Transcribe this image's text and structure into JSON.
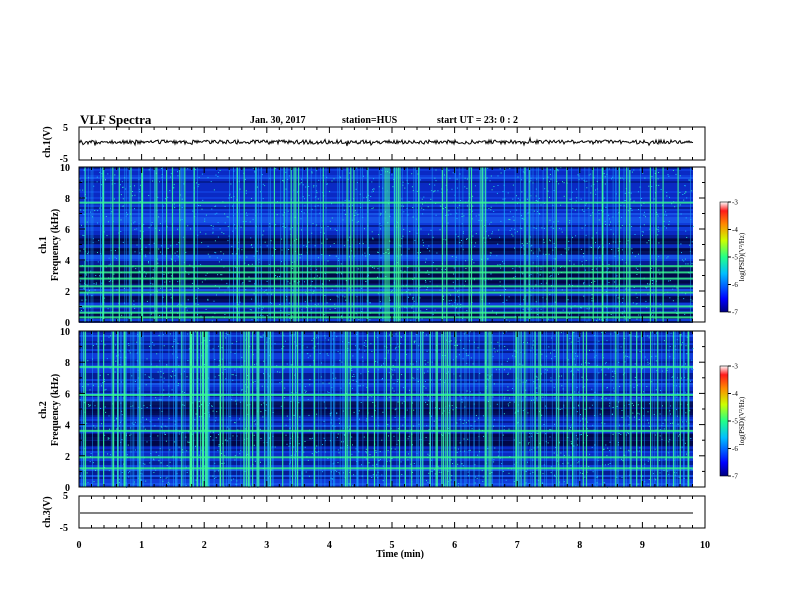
{
  "header": {
    "title": "VLF Spectra",
    "date": "Jan. 30, 2017",
    "station": "station=HUS",
    "start": "start UT = 23: 0 : 2"
  },
  "chart_data": [
    {
      "type": "line",
      "panel": "ch1-waveform",
      "ylabel": "ch.1(V)",
      "ylim": [
        -5,
        5
      ],
      "yticks": [
        "5",
        "-5"
      ],
      "xlim": [
        0,
        10
      ],
      "series": [
        {
          "baseline": 0,
          "amplitude": 0.4
        }
      ]
    },
    {
      "type": "heatmap",
      "panel": "ch1-spectrogram",
      "channel_label": "ch.1",
      "ylabel": "Frequency (kHz)",
      "ylim": [
        0,
        10
      ],
      "yticks": [
        "0",
        "2",
        "4",
        "6",
        "8",
        "10"
      ],
      "xlim": [
        0,
        9.83
      ],
      "colorbar": {
        "label": "log(PSD)(V²/Hz)",
        "ticks": [
          "-3",
          "-4",
          "-5",
          "-6",
          "-7"
        ],
        "range": [
          -7,
          -3
        ]
      },
      "bright_bands_khz": [
        0.3,
        0.6,
        1.0,
        1.9,
        2.3,
        2.8,
        3.2,
        3.6,
        7.7
      ],
      "dark_bands_khz": [
        0.4,
        1.5,
        2.6,
        3.0,
        3.45,
        4.6,
        5.2
      ]
    },
    {
      "type": "heatmap",
      "panel": "ch2-spectrogram",
      "channel_label": "ch.2",
      "ylabel": "Frequency (kHz)",
      "ylim": [
        0,
        10
      ],
      "yticks": [
        "0",
        "2",
        "4",
        "6",
        "8",
        "10"
      ],
      "xlim": [
        0,
        9.83
      ],
      "colorbar": {
        "label": "log(PSD)(V²/Hz)",
        "ticks": [
          "-3",
          "-4",
          "-5",
          "-6",
          "-7"
        ],
        "range": [
          -7,
          -3
        ]
      },
      "bright_bands_khz": [
        1.2,
        1.9,
        3.6,
        5.9,
        7.7
      ],
      "dark_bands_khz": [
        2.8,
        3.2,
        4.8,
        5.3
      ]
    },
    {
      "type": "line",
      "panel": "ch3-waveform",
      "ylabel": "ch.3(V)",
      "ylim": [
        -5,
        5
      ],
      "yticks": [
        "5",
        "0",
        "-5"
      ],
      "xlim": [
        0,
        9.83
      ],
      "series": [
        {
          "baseline": 0,
          "amplitude": 0
        }
      ]
    }
  ],
  "xaxis": {
    "label": "Time (min)",
    "ticks": [
      "0",
      "1",
      "2",
      "3",
      "4",
      "5",
      "6",
      "7",
      "8",
      "9",
      "10"
    ],
    "range": [
      0,
      10
    ]
  },
  "colors": {
    "frame": "#000000",
    "background": "#ffffff"
  }
}
